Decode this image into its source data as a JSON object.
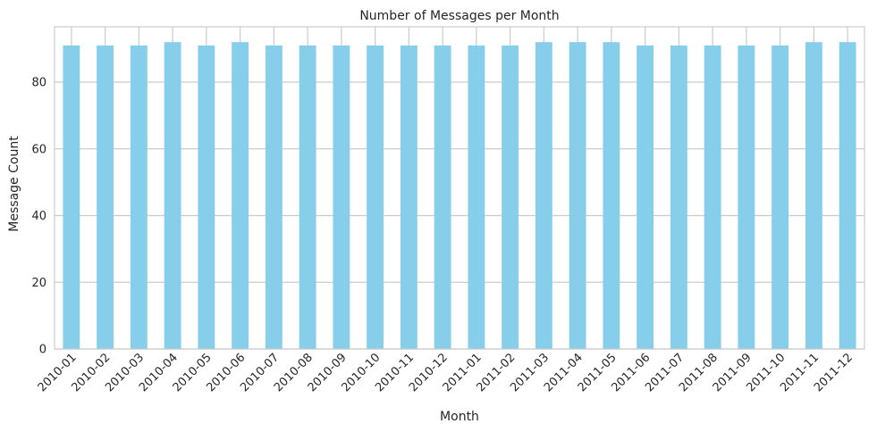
{
  "chart_data": {
    "type": "bar",
    "title": "Number of Messages per Month",
    "xlabel": "Month",
    "ylabel": "Message Count",
    "categories": [
      "2010-01",
      "2010-02",
      "2010-03",
      "2010-04",
      "2010-05",
      "2010-06",
      "2010-07",
      "2010-08",
      "2010-09",
      "2010-10",
      "2010-11",
      "2010-12",
      "2011-01",
      "2011-02",
      "2011-03",
      "2011-04",
      "2011-05",
      "2011-06",
      "2011-07",
      "2011-08",
      "2011-09",
      "2011-10",
      "2011-11",
      "2011-12"
    ],
    "values": [
      91,
      91,
      91,
      92,
      91,
      92,
      91,
      91,
      91,
      91,
      91,
      91,
      91,
      91,
      92,
      92,
      92,
      91,
      91,
      91,
      91,
      91,
      92,
      92
    ],
    "ylim": [
      0,
      96.6
    ],
    "yticks": [
      0,
      20,
      40,
      60,
      80
    ],
    "bar_color": "#87ceeb",
    "grid": true,
    "legend": "none"
  }
}
